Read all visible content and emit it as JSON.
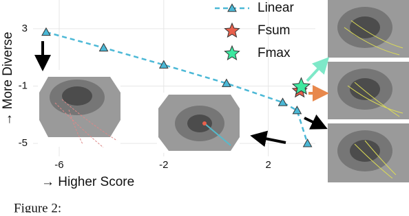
{
  "chart_data": {
    "type": "scatter",
    "x_label": "→ Higher Score",
    "y_label": "→ More Diverse",
    "caption": "Figure 2:",
    "xlim": [
      -7,
      3.8
    ],
    "ylim": [
      -5.9,
      5
    ],
    "xticks": [
      -6,
      -2,
      2
    ],
    "yticks": [
      3,
      -1,
      -5
    ],
    "grid": true,
    "series": [
      {
        "name": "Linear",
        "color": "#4bb8d6",
        "marker": "triangle",
        "line": "dashed",
        "x": [
          -6.5,
          -4.3,
          -2.0,
          0.4,
          2.55,
          3.1,
          3.5
        ],
        "values": [
          2.76,
          1.67,
          0.48,
          -0.81,
          -2.14,
          -2.7,
          -5.0
        ]
      },
      {
        "name": "Fsum",
        "color": "#e8604c",
        "marker": "star",
        "x": [
          3.2
        ],
        "values": [
          -1.33
        ]
      },
      {
        "name": "Fmax",
        "color": "#3de8a0",
        "marker": "star",
        "x": [
          3.26
        ],
        "values": [
          -1.05
        ]
      }
    ]
  }
}
